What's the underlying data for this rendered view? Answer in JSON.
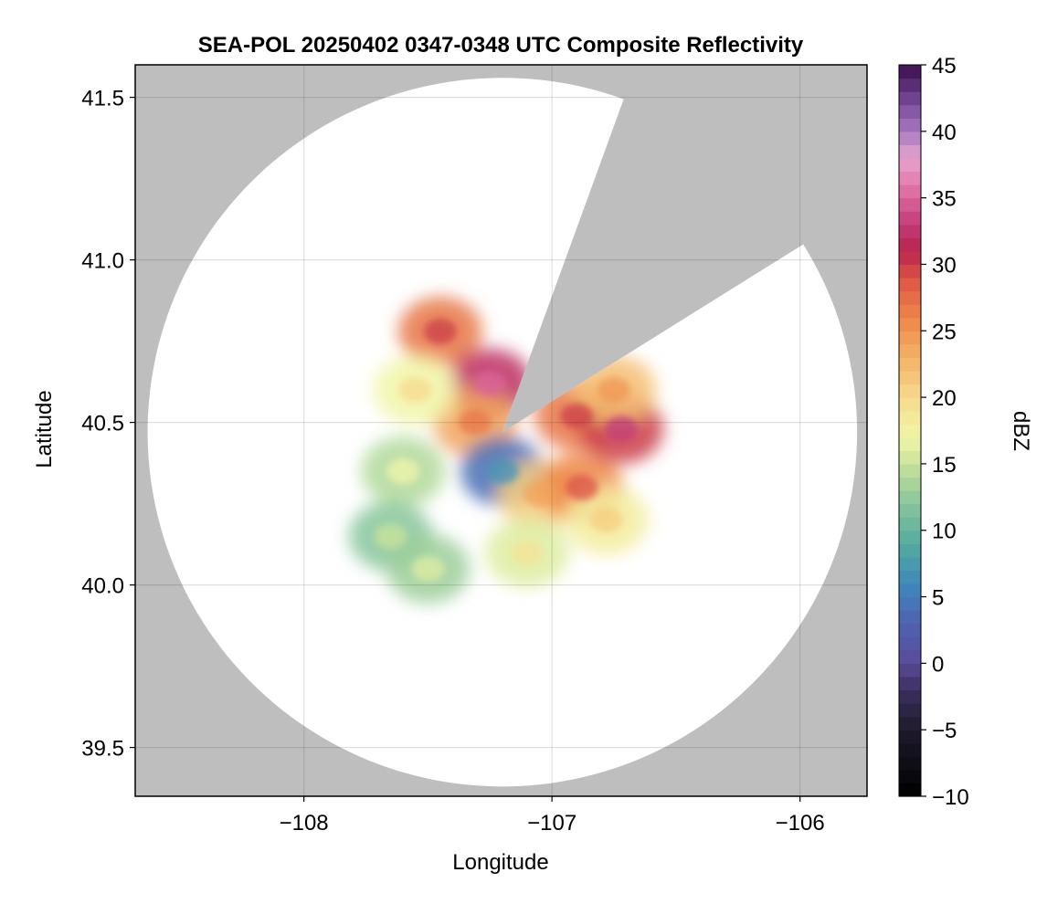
{
  "chart_data": {
    "type": "heatmap",
    "title": "SEA-POL 20250402 0347-0348 UTC Composite Reflectivity",
    "xlabel": "Longitude",
    "ylabel": "Latitude",
    "xlim": [
      -108.68,
      -105.73
    ],
    "ylim": [
      39.35,
      41.6
    ],
    "x_ticks": [
      -108,
      -107,
      -106
    ],
    "x_tick_labels": [
      "−108",
      "−107",
      "−106"
    ],
    "y_ticks": [
      39.5,
      40.0,
      40.5,
      41.0,
      41.5
    ],
    "y_tick_labels": [
      "39.5",
      "40.0",
      "40.5",
      "41.0",
      "41.5"
    ],
    "grid": true,
    "radar": {
      "lon": -107.2,
      "lat": 40.47,
      "range_lat_deg": 1.09,
      "range_lon_deg": 1.43,
      "blocked_sectors_deg_clockwise_from_north": [
        [
          20,
          58
        ]
      ],
      "no_coverage_color": "#bebebe",
      "coverage_color": "#ffffff"
    },
    "colorbar": {
      "label": "dBZ",
      "min": -10,
      "max": 45,
      "ticks": [
        -10,
        -5,
        0,
        5,
        10,
        15,
        20,
        25,
        30,
        35,
        40,
        45
      ],
      "tick_labels": [
        "−10",
        "−5",
        "0",
        "5",
        "10",
        "15",
        "20",
        "25",
        "30",
        "35",
        "40",
        "45"
      ],
      "stops": [
        {
          "value": -10,
          "color": "#000000"
        },
        {
          "value": -5,
          "color": "#1e1a2c"
        },
        {
          "value": -2,
          "color": "#3b2f5e"
        },
        {
          "value": 0,
          "color": "#5a4b99"
        },
        {
          "value": 3,
          "color": "#4e62b0"
        },
        {
          "value": 6,
          "color": "#3f88bc"
        },
        {
          "value": 9,
          "color": "#55ab9e"
        },
        {
          "value": 12,
          "color": "#87c59c"
        },
        {
          "value": 15,
          "color": "#c8e39a"
        },
        {
          "value": 17,
          "color": "#f1f6a8"
        },
        {
          "value": 20,
          "color": "#f7da8c"
        },
        {
          "value": 23,
          "color": "#f3b266"
        },
        {
          "value": 26,
          "color": "#ee8648"
        },
        {
          "value": 29,
          "color": "#dc5346"
        },
        {
          "value": 31,
          "color": "#b9254a"
        },
        {
          "value": 33,
          "color": "#c23a78"
        },
        {
          "value": 36,
          "color": "#e379ab"
        },
        {
          "value": 38,
          "color": "#e8a4cf"
        },
        {
          "value": 40,
          "color": "#a879c0"
        },
        {
          "value": 42,
          "color": "#7a4d9c"
        },
        {
          "value": 45,
          "color": "#3a0f4d"
        }
      ]
    },
    "echo_cells": [
      {
        "lon": -107.45,
        "lat": 40.78,
        "dbz": 27
      },
      {
        "lon": -107.25,
        "lat": 40.62,
        "dbz": 32
      },
      {
        "lon": -107.31,
        "lat": 40.5,
        "dbz": 24
      },
      {
        "lon": -107.55,
        "lat": 40.6,
        "dbz": 17
      },
      {
        "lon": -107.6,
        "lat": 40.35,
        "dbz": 14
      },
      {
        "lon": -107.65,
        "lat": 40.15,
        "dbz": 12
      },
      {
        "lon": -107.2,
        "lat": 40.35,
        "dbz": 4
      },
      {
        "lon": -107.05,
        "lat": 40.28,
        "dbz": 21
      },
      {
        "lon": -106.88,
        "lat": 40.3,
        "dbz": 26
      },
      {
        "lon": -106.78,
        "lat": 40.2,
        "dbz": 18
      },
      {
        "lon": -106.9,
        "lat": 40.52,
        "dbz": 27
      },
      {
        "lon": -106.72,
        "lat": 40.48,
        "dbz": 30
      },
      {
        "lon": -106.75,
        "lat": 40.6,
        "dbz": 22
      },
      {
        "lon": -107.5,
        "lat": 40.05,
        "dbz": 13
      },
      {
        "lon": -107.1,
        "lat": 40.1,
        "dbz": 16
      }
    ]
  }
}
